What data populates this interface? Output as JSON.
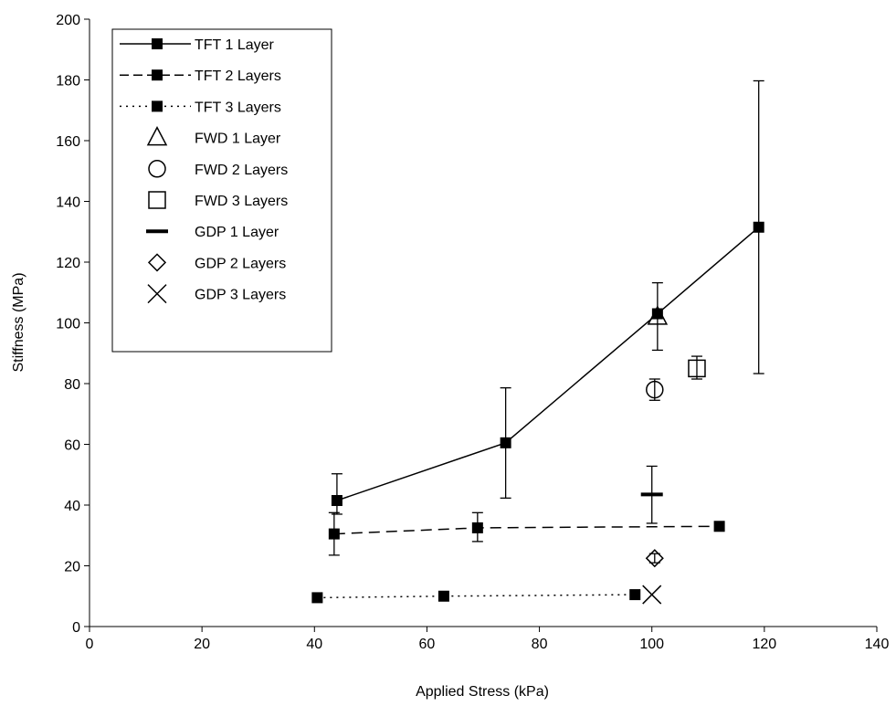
{
  "chart_data": {
    "type": "scatter",
    "xlabel": "Applied Stress (kPa)",
    "ylabel": "Stiffness (MPa)",
    "xlim": [
      0,
      140
    ],
    "ylim": [
      0,
      200
    ],
    "xticks": [
      "0",
      "20",
      "40",
      "60",
      "80",
      "100",
      "120",
      "140"
    ],
    "yticks": [
      "0",
      "20",
      "40",
      "60",
      "80",
      "100",
      "120",
      "140",
      "160",
      "180",
      "200"
    ],
    "grid": false,
    "legend_position": "top-left",
    "series": [
      {
        "name": "TFT 1 Layer",
        "marker": "square-filled",
        "line": "solid",
        "x": [
          44,
          74,
          101,
          119
        ],
        "y": [
          41.5,
          60.5,
          103,
          131.5
        ],
        "err_low": [
          37,
          42.3,
          91,
          83.3
        ],
        "err_high": [
          50.3,
          78.6,
          113.2,
          179.7
        ]
      },
      {
        "name": "TFT 2 Layers",
        "marker": "square-filled",
        "line": "dashed",
        "x": [
          43.5,
          69,
          112
        ],
        "y": [
          30.5,
          32.5,
          33
        ],
        "err_low": [
          23.5,
          28,
          null
        ],
        "err_high": [
          37.5,
          37.5,
          null
        ]
      },
      {
        "name": "TFT 3 Layers",
        "marker": "square-filled",
        "line": "dotted",
        "x": [
          40.5,
          63,
          97
        ],
        "y": [
          9.5,
          10,
          10.5
        ],
        "err_low": [
          null,
          null,
          null
        ],
        "err_high": [
          null,
          null,
          null
        ]
      },
      {
        "name": "FWD 1 Layer",
        "marker": "triangle-open",
        "line": "none",
        "x": [
          101
        ],
        "y": [
          102
        ],
        "err_low": [
          null
        ],
        "err_high": [
          null
        ]
      },
      {
        "name": "FWD 2 Layers",
        "marker": "circle-open",
        "line": "none",
        "x": [
          100.5
        ],
        "y": [
          78
        ],
        "err_low": [
          74.5
        ],
        "err_high": [
          81.5
        ]
      },
      {
        "name": "FWD 3 Layers",
        "marker": "square-open",
        "line": "none",
        "x": [
          108
        ],
        "y": [
          85
        ],
        "err_low": [
          81.5
        ],
        "err_high": [
          89
        ]
      },
      {
        "name": "GDP 1 Layer",
        "marker": "dash",
        "line": "none",
        "x": [
          100
        ],
        "y": [
          43.5
        ],
        "err_low": [
          34
        ],
        "err_high": [
          52.8
        ]
      },
      {
        "name": "GDP 2 Layers",
        "marker": "diamond-open",
        "line": "none",
        "x": [
          100.5
        ],
        "y": [
          22.5
        ],
        "err_low": [
          21
        ],
        "err_high": [
          24
        ]
      },
      {
        "name": "GDP 3 Layers",
        "marker": "x",
        "line": "none",
        "x": [
          100
        ],
        "y": [
          10.5
        ],
        "err_low": [
          null
        ],
        "err_high": [
          null
        ]
      }
    ]
  }
}
